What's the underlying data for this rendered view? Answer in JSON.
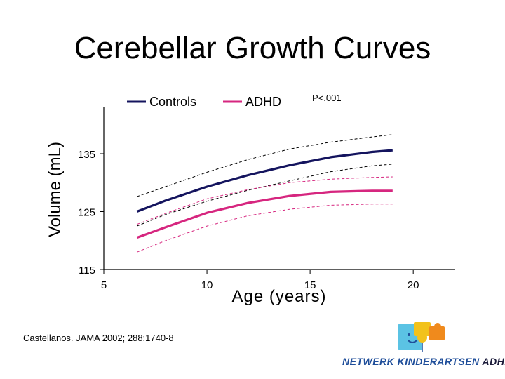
{
  "slide": {
    "title": "Cerebellar Growth Curves",
    "citation": "Castellanos. JAMA 2002; 288:1740-8"
  },
  "logo": {
    "text_main": "NETWERK KINDERARTSEN",
    "text_tail": "ADHD"
  },
  "colors": {
    "controls": "#14145e",
    "adhd": "#d6267f",
    "logo_blue": "#1f4e9a",
    "logo_yellow": "#f2c21b",
    "logo_orange": "#f08a1c",
    "logo_cyan": "#5bc3e4"
  },
  "chart_data": {
    "type": "line",
    "xlabel": "Age (years)",
    "ylabel": "Volume (mL)",
    "xlim": [
      5,
      22
    ],
    "ylim": [
      115,
      143
    ],
    "xticks": [
      5,
      10,
      15,
      20
    ],
    "yticks": [
      115,
      125,
      135
    ],
    "annotation": "P<.001",
    "legend_position": "top",
    "x": [
      6.6,
      8,
      10,
      12,
      14,
      16,
      18,
      19
    ],
    "series": [
      {
        "name": "Controls",
        "color": "#14145e",
        "style": "solid",
        "legend": true,
        "values": [
          125.0,
          126.9,
          129.3,
          131.3,
          133.0,
          134.4,
          135.3,
          135.6
        ]
      },
      {
        "name": "Controls upper",
        "color": "#000000",
        "style": "dashed",
        "legend": false,
        "values": [
          127.6,
          129.3,
          131.8,
          134.0,
          135.8,
          137.0,
          137.9,
          138.3
        ]
      },
      {
        "name": "Controls lower",
        "color": "#000000",
        "style": "dashed",
        "legend": false,
        "values": [
          122.5,
          124.5,
          126.8,
          128.7,
          130.3,
          131.9,
          132.9,
          133.2
        ]
      },
      {
        "name": "ADHD",
        "color": "#d6267f",
        "style": "solid",
        "legend": true,
        "values": [
          120.5,
          122.3,
          124.8,
          126.5,
          127.7,
          128.4,
          128.6,
          128.6
        ]
      },
      {
        "name": "ADHD upper",
        "color": "#d6267f",
        "style": "dashed",
        "legend": false,
        "values": [
          122.8,
          124.7,
          127.2,
          128.8,
          130.0,
          130.6,
          130.9,
          131.0
        ]
      },
      {
        "name": "ADHD lower",
        "color": "#d6267f",
        "style": "dashed",
        "legend": false,
        "values": [
          118.0,
          120.0,
          122.5,
          124.3,
          125.4,
          126.1,
          126.3,
          126.3
        ]
      }
    ]
  }
}
